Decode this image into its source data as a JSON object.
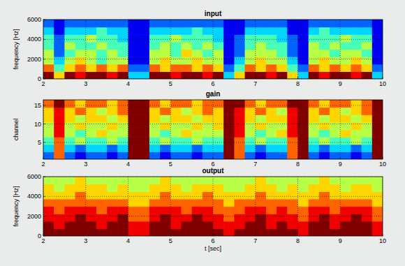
{
  "chart_data": [
    {
      "type": "heatmap",
      "title": "input",
      "ylabel": "frequency [Hz]",
      "xlim": [
        2,
        10
      ],
      "xticks": [
        2,
        3,
        4,
        5,
        6,
        7,
        8,
        9,
        10
      ],
      "ylim": [
        0,
        6000
      ],
      "yticks": [
        0,
        2000,
        4000,
        6000
      ],
      "grid": true,
      "clim": [
        0,
        9
      ],
      "cells": [
        [
          9,
          6,
          9,
          8,
          9,
          9,
          8,
          9,
          3,
          3,
          9,
          9,
          8,
          9,
          9,
          8,
          9,
          3,
          6,
          9,
          9,
          8,
          9,
          6,
          3,
          9,
          8,
          9,
          9,
          8,
          9,
          3
        ],
        [
          7,
          4,
          6,
          7,
          6,
          7,
          6,
          7,
          2,
          2,
          7,
          6,
          7,
          7,
          6,
          7,
          6,
          2,
          4,
          7,
          6,
          7,
          6,
          4,
          2,
          7,
          6,
          7,
          6,
          7,
          6,
          2
        ],
        [
          5,
          3,
          5,
          6,
          5,
          4,
          5,
          5,
          1,
          1,
          5,
          6,
          5,
          5,
          6,
          5,
          5,
          1,
          3,
          5,
          6,
          5,
          5,
          3,
          1,
          5,
          6,
          5,
          5,
          6,
          5,
          1
        ],
        [
          5,
          2,
          4,
          5,
          5,
          4,
          5,
          4,
          1,
          1,
          5,
          5,
          4,
          6,
          5,
          4,
          5,
          1,
          2,
          5,
          5,
          5,
          4,
          2,
          1,
          5,
          5,
          4,
          5,
          5,
          4,
          1
        ],
        [
          4,
          2,
          5,
          4,
          4,
          5,
          4,
          4,
          1,
          1,
          4,
          5,
          4,
          5,
          4,
          5,
          4,
          1,
          2,
          4,
          5,
          4,
          4,
          2,
          1,
          5,
          4,
          5,
          4,
          4,
          5,
          1
        ],
        [
          4,
          2,
          4,
          4,
          5,
          4,
          4,
          3,
          1,
          1,
          4,
          4,
          5,
          4,
          4,
          4,
          3,
          1,
          2,
          4,
          4,
          4,
          3,
          2,
          1,
          4,
          4,
          4,
          5,
          4,
          4,
          1
        ],
        [
          3,
          1,
          3,
          3,
          3,
          4,
          3,
          3,
          1,
          1,
          3,
          3,
          3,
          3,
          4,
          3,
          3,
          1,
          1,
          3,
          3,
          3,
          3,
          1,
          1,
          3,
          4,
          3,
          3,
          3,
          3,
          1
        ],
        [
          2,
          1,
          2,
          2,
          2,
          2,
          2,
          2,
          1,
          1,
          2,
          2,
          2,
          2,
          2,
          2,
          2,
          1,
          1,
          2,
          2,
          2,
          2,
          1,
          1,
          2,
          2,
          2,
          2,
          2,
          2,
          1
        ]
      ]
    },
    {
      "type": "heatmap",
      "title": "gain",
      "ylabel": "channel",
      "xlim": [
        2,
        10
      ],
      "xticks": [
        2,
        3,
        4,
        5,
        6,
        7,
        8,
        9,
        10
      ],
      "ylim": [
        0.5,
        16.5
      ],
      "yticks": [
        5,
        10,
        15
      ],
      "grid": true,
      "clim": [
        0,
        9
      ],
      "cells": [
        [
          2,
          7,
          2,
          1,
          2,
          2,
          1,
          2,
          9,
          9,
          2,
          1,
          2,
          2,
          1,
          2,
          2,
          9,
          7,
          2,
          1,
          2,
          2,
          7,
          9,
          2,
          1,
          2,
          2,
          1,
          2,
          9
        ],
        [
          3,
          7,
          3,
          2,
          3,
          3,
          2,
          3,
          9,
          9,
          3,
          2,
          3,
          3,
          2,
          3,
          3,
          9,
          7,
          3,
          2,
          3,
          3,
          7,
          9,
          3,
          2,
          3,
          3,
          2,
          3,
          9
        ],
        [
          4,
          7,
          4,
          5,
          4,
          4,
          5,
          4,
          9,
          9,
          4,
          5,
          4,
          4,
          5,
          4,
          4,
          9,
          7,
          4,
          5,
          4,
          4,
          7,
          9,
          4,
          5,
          4,
          4,
          5,
          4,
          9
        ],
        [
          5,
          8,
          5,
          4,
          5,
          6,
          5,
          5,
          9,
          9,
          5,
          4,
          5,
          6,
          5,
          5,
          5,
          9,
          8,
          5,
          4,
          5,
          6,
          8,
          9,
          5,
          4,
          5,
          6,
          5,
          5,
          9
        ],
        [
          5,
          8,
          5,
          6,
          5,
          5,
          6,
          5,
          9,
          9,
          5,
          6,
          5,
          5,
          6,
          5,
          6,
          9,
          8,
          5,
          6,
          5,
          5,
          8,
          9,
          5,
          6,
          5,
          5,
          6,
          5,
          9
        ],
        [
          6,
          8,
          6,
          5,
          6,
          6,
          5,
          6,
          9,
          9,
          6,
          5,
          6,
          6,
          5,
          6,
          6,
          9,
          8,
          6,
          5,
          6,
          6,
          8,
          9,
          6,
          5,
          6,
          6,
          5,
          6,
          9
        ],
        [
          6,
          8,
          6,
          7,
          6,
          5,
          6,
          7,
          9,
          9,
          6,
          7,
          6,
          5,
          6,
          7,
          6,
          9,
          8,
          6,
          7,
          6,
          5,
          8,
          9,
          6,
          7,
          6,
          5,
          6,
          7,
          9
        ],
        [
          7,
          9,
          7,
          6,
          7,
          7,
          6,
          7,
          9,
          9,
          7,
          6,
          7,
          7,
          6,
          7,
          7,
          9,
          9,
          7,
          6,
          7,
          7,
          9,
          9,
          7,
          6,
          7,
          7,
          6,
          7,
          9
        ]
      ]
    },
    {
      "type": "heatmap",
      "title": "output",
      "ylabel": "frequency [Hz]",
      "xlabel": "t [sec]",
      "xlim": [
        2,
        10
      ],
      "xticks": [
        2,
        3,
        4,
        5,
        6,
        7,
        8,
        9,
        10
      ],
      "ylim": [
        0,
        6000
      ],
      "yticks": [
        0,
        2000,
        4000,
        6000
      ],
      "grid": true,
      "clim": [
        0,
        9
      ],
      "cells": [
        [
          9,
          9,
          9,
          9,
          9,
          9,
          9,
          9,
          8,
          8,
          9,
          9,
          9,
          9,
          9,
          9,
          9,
          8,
          9,
          9,
          9,
          9,
          9,
          9,
          8,
          9,
          9,
          9,
          9,
          9,
          9,
          8
        ],
        [
          9,
          8,
          9,
          9,
          9,
          8,
          9,
          9,
          8,
          8,
          9,
          9,
          8,
          9,
          9,
          9,
          8,
          8,
          8,
          9,
          9,
          8,
          9,
          8,
          8,
          9,
          9,
          8,
          9,
          9,
          9,
          8
        ],
        [
          8,
          8,
          8,
          9,
          8,
          8,
          8,
          9,
          7,
          7,
          8,
          9,
          8,
          8,
          9,
          8,
          8,
          7,
          8,
          8,
          9,
          8,
          8,
          8,
          7,
          8,
          9,
          8,
          8,
          9,
          8,
          7
        ],
        [
          8,
          7,
          8,
          8,
          8,
          7,
          8,
          8,
          7,
          7,
          8,
          8,
          8,
          7,
          8,
          8,
          7,
          7,
          7,
          8,
          8,
          7,
          8,
          7,
          7,
          8,
          8,
          7,
          8,
          8,
          8,
          7
        ],
        [
          7,
          7,
          7,
          7,
          7,
          7,
          7,
          7,
          6,
          6,
          7,
          7,
          7,
          7,
          7,
          7,
          7,
          6,
          7,
          7,
          7,
          7,
          7,
          7,
          6,
          7,
          7,
          7,
          7,
          7,
          7,
          6
        ],
        [
          6,
          6,
          6,
          7,
          6,
          6,
          6,
          6,
          6,
          6,
          6,
          7,
          6,
          6,
          6,
          7,
          6,
          6,
          6,
          6,
          7,
          6,
          6,
          6,
          6,
          6,
          7,
          6,
          6,
          6,
          6,
          6
        ],
        [
          6,
          5,
          6,
          6,
          6,
          6,
          5,
          6,
          5,
          5,
          6,
          6,
          6,
          5,
          6,
          6,
          6,
          5,
          5,
          6,
          6,
          6,
          5,
          6,
          5,
          6,
          6,
          6,
          5,
          6,
          6,
          5
        ],
        [
          5,
          5,
          5,
          6,
          5,
          5,
          5,
          5,
          5,
          5,
          5,
          6,
          5,
          5,
          5,
          5,
          5,
          5,
          5,
          5,
          6,
          5,
          5,
          5,
          5,
          5,
          6,
          5,
          5,
          5,
          5,
          5
        ]
      ]
    }
  ]
}
